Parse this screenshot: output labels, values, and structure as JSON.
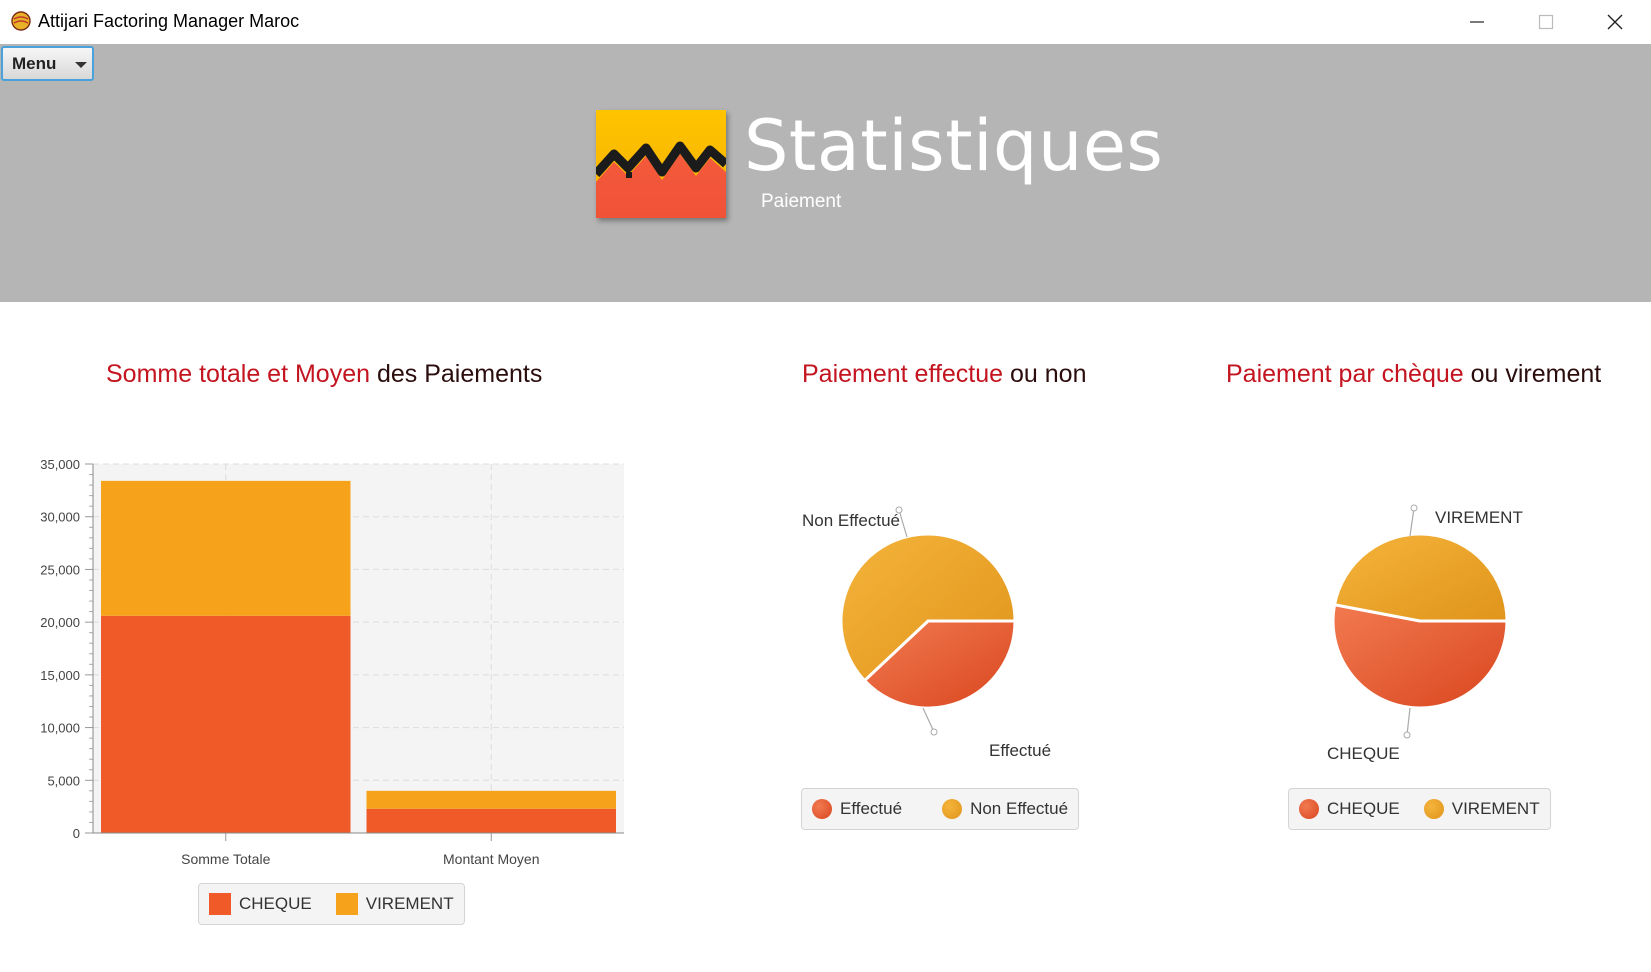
{
  "window": {
    "title": "Attijari Factoring Manager Maroc"
  },
  "header": {
    "menu_label": "Menu",
    "title": "Statistiques",
    "subtitle": "Paiement"
  },
  "colors": {
    "header_bg": "#b5b5b5",
    "cheque": "#f05a28",
    "virement": "#f7a21b",
    "title_red": "#c3141f"
  },
  "charts": {
    "bar": {
      "title_part1": "Somme totale et Moyen",
      "title_part2": "des Paiements",
      "legend": [
        "CHEQUE",
        "VIREMENT"
      ]
    },
    "pie1": {
      "title_part1": "Paiement effectue",
      "title_part2": "ou non",
      "labels": [
        "Effectué",
        "Non Effectué"
      ],
      "legend": [
        "Effectué",
        "Non Effectué"
      ]
    },
    "pie2": {
      "title_part1": "Paiement par chèque",
      "title_part2": "ou virement",
      "labels": [
        "CHEQUE",
        "VIREMENT"
      ],
      "legend": [
        "CHEQUE",
        "VIREMENT"
      ]
    }
  },
  "chart_data": [
    {
      "type": "bar",
      "stacked": true,
      "title": "Somme totale et Moyen des Paiements",
      "categories": [
        "Somme Totale",
        "Montant Moyen"
      ],
      "series": [
        {
          "name": "CHEQUE",
          "values": [
            20600,
            2300
          ]
        },
        {
          "name": "VIREMENT",
          "values": [
            12800,
            1700
          ]
        }
      ],
      "ylim": [
        0,
        35000
      ],
      "yticks": [
        "0",
        "5,000",
        "10,000",
        "15,000",
        "20,000",
        "25,000",
        "30,000",
        "35,000"
      ],
      "grid": true,
      "legend": "bottom"
    },
    {
      "type": "pie",
      "title": "Paiement effectue ou non",
      "categories": [
        "Effectué",
        "Non Effectué"
      ],
      "values": [
        38,
        62
      ],
      "legend": "bottom"
    },
    {
      "type": "pie",
      "title": "Paiement par chèque ou virement",
      "categories": [
        "CHEQUE",
        "VIREMENT"
      ],
      "values": [
        53,
        47
      ],
      "legend": "bottom"
    }
  ]
}
